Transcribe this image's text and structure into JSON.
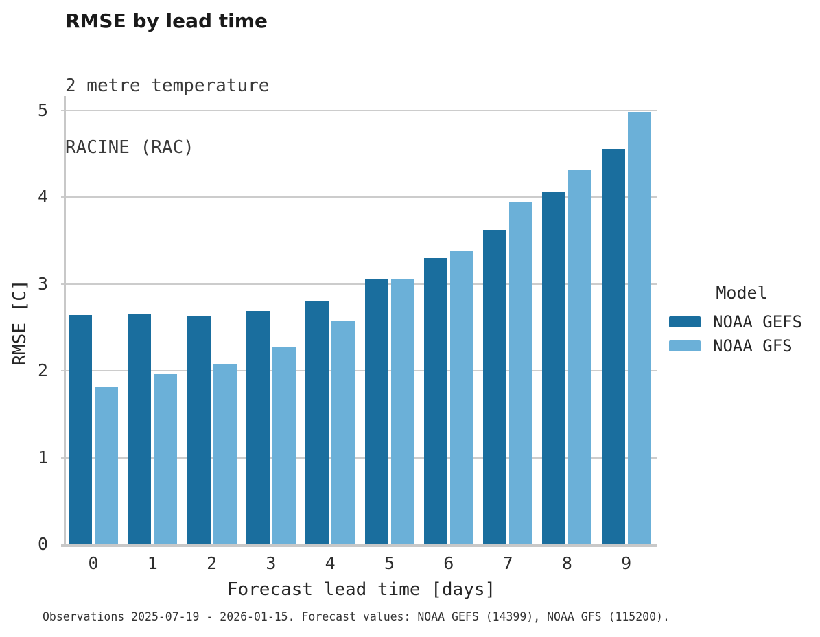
{
  "chart_data": {
    "type": "bar",
    "title": "RMSE by lead time",
    "subtitle": [
      "2 metre temperature",
      "RACINE (RAC)"
    ],
    "xlabel": "Forecast lead time [days]",
    "ylabel": "RMSE [C]",
    "categories": [
      "0",
      "1",
      "2",
      "3",
      "4",
      "5",
      "6",
      "7",
      "8",
      "9"
    ],
    "series": [
      {
        "name": "NOAA GEFS",
        "color": "#1a6e9e",
        "values": [
          2.64,
          2.65,
          2.63,
          2.69,
          2.8,
          3.06,
          3.3,
          3.62,
          4.06,
          4.55
        ]
      },
      {
        "name": "NOAA GFS",
        "color": "#6bb0d8",
        "values": [
          1.81,
          1.96,
          2.07,
          2.27,
          2.57,
          3.05,
          3.38,
          3.94,
          4.31,
          4.98
        ]
      }
    ],
    "ylim": [
      0,
      5
    ],
    "yticks": [
      0,
      1,
      2,
      3,
      4,
      5
    ],
    "grid": "horizontal",
    "legend_title": "Model",
    "legend_position": "right",
    "footer": "Observations 2025-07-19 - 2026-01-15. Forecast values: NOAA GEFS (14399), NOAA GFS (115200).",
    "colors": {
      "grid": "#cccccc",
      "axis": "#c8c8c8",
      "title_text": "#1a1a1a",
      "tick_text": "#2e2e2e"
    }
  }
}
